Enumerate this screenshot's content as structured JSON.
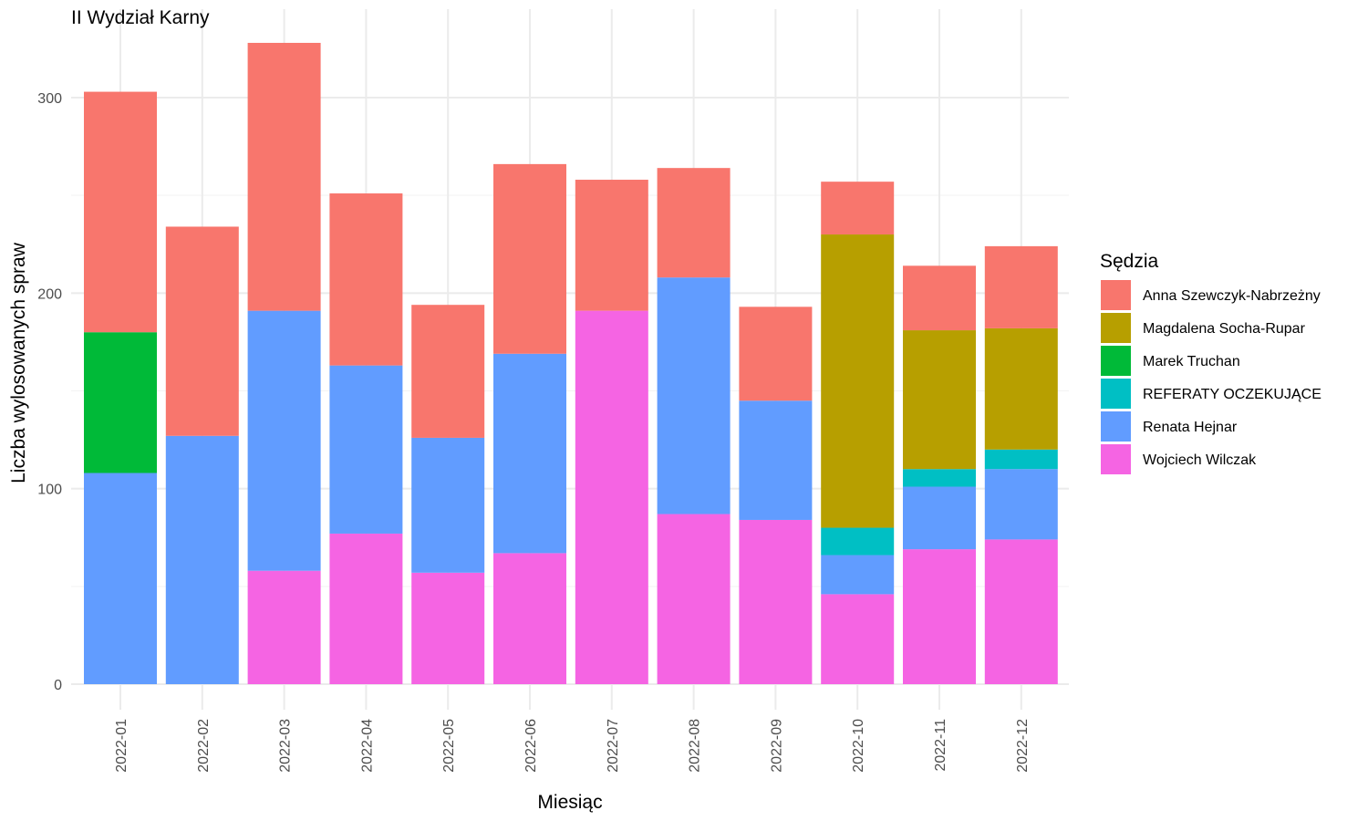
{
  "chart_data": {
    "type": "bar",
    "stacked": true,
    "title": "II Wydział Karny",
    "xlabel": "Miesiąc",
    "ylabel": "Liczba wylosowanych spraw",
    "ylim": [
      0,
      330
    ],
    "yticks": [
      0,
      100,
      200,
      300
    ],
    "grid": true,
    "legend_title": "Sędzia",
    "legend_position": "right",
    "categories": [
      "2022-01",
      "2022-02",
      "2022-03",
      "2022-04",
      "2022-05",
      "2022-06",
      "2022-07",
      "2022-08",
      "2022-09",
      "2022-10",
      "2022-11",
      "2022-12"
    ],
    "series": [
      {
        "name": "Anna Szewczyk-Nabrzeżny",
        "color": "#F8766D",
        "values": [
          123,
          107,
          137,
          88,
          68,
          97,
          67,
          56,
          48,
          27,
          33,
          42
        ]
      },
      {
        "name": "Magdalena Socha-Rupar",
        "color": "#B79F00",
        "values": [
          0,
          0,
          0,
          0,
          0,
          0,
          0,
          0,
          0,
          150,
          71,
          62
        ]
      },
      {
        "name": "Marek Truchan",
        "color": "#00BA38",
        "values": [
          72,
          0,
          0,
          0,
          0,
          0,
          0,
          0,
          0,
          0,
          0,
          0
        ]
      },
      {
        "name": "REFERATY OCZEKUJĄCE",
        "color": "#00BFC4",
        "values": [
          0,
          0,
          0,
          0,
          0,
          0,
          0,
          0,
          0,
          14,
          9,
          10
        ]
      },
      {
        "name": "Renata Hejnar",
        "color": "#619CFF",
        "values": [
          108,
          127,
          133,
          86,
          69,
          102,
          0,
          121,
          61,
          20,
          32,
          36
        ]
      },
      {
        "name": "Wojciech Wilczak",
        "color": "#F564E3",
        "values": [
          0,
          0,
          58,
          77,
          57,
          67,
          191,
          87,
          84,
          46,
          69,
          74
        ]
      }
    ]
  }
}
